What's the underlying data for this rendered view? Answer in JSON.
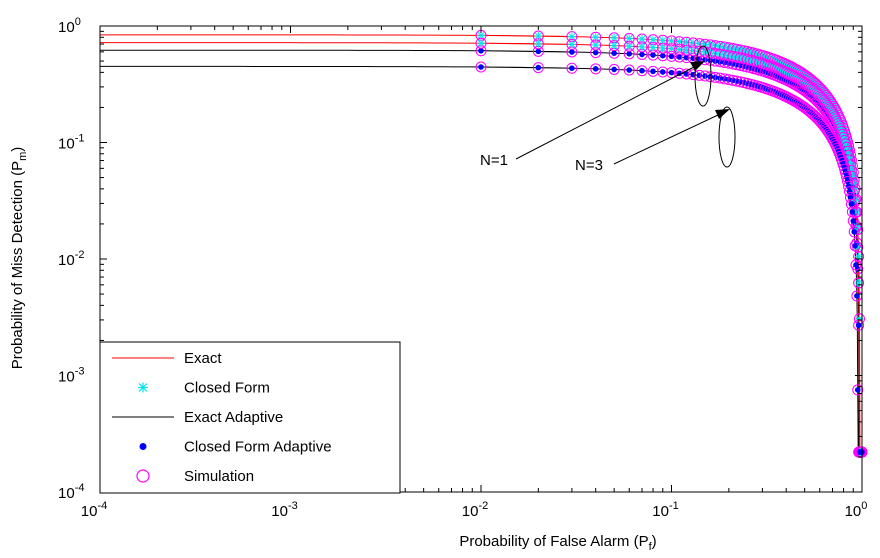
{
  "chart_data": {
    "type": "line",
    "xlabel": {
      "main": "Probability of False Alarm (P",
      "sub": "f",
      "close": ")"
    },
    "ylabel": {
      "main": "Probability of Miss Detection (P",
      "sub": "m",
      "close": ")"
    },
    "xscale": "log",
    "yscale": "log",
    "xlim": [
      0.0001,
      1
    ],
    "ylim": [
      0.0001,
      1
    ],
    "grid": false,
    "legend_position": "bottom-left",
    "x_ticks": [
      {
        "base": "10",
        "exp": "-4"
      },
      {
        "base": "10",
        "exp": "-3"
      },
      {
        "base": "10",
        "exp": "-2"
      },
      {
        "base": "10",
        "exp": "-1"
      },
      {
        "base": "10",
        "exp": "0"
      }
    ],
    "y_ticks": [
      {
        "base": "10",
        "exp": "-4"
      },
      {
        "base": "10",
        "exp": "-3"
      },
      {
        "base": "10",
        "exp": "-2"
      },
      {
        "base": "10",
        "exp": "-1"
      },
      {
        "base": "10",
        "exp": "0"
      }
    ],
    "legend": [
      {
        "label": "Exact",
        "color": "#ff0000",
        "marker": "line"
      },
      {
        "label": "Closed Form",
        "color": "#00e5ee",
        "marker": "asterisk"
      },
      {
        "label": "Exact Adaptive",
        "color": "#000000",
        "marker": "line"
      },
      {
        "label": "Closed Form Adaptive",
        "color": "#0000ff",
        "marker": "dot"
      },
      {
        "label": "Simulation",
        "color": "#ff00ff",
        "marker": "circle"
      }
    ],
    "annotations": [
      {
        "text": "N=1",
        "x": 0.14,
        "y": 0.45
      },
      {
        "text": "N=3",
        "x": 0.2,
        "y": 0.2
      }
    ],
    "curves": [
      {
        "N": 1,
        "variant": "non-adaptive",
        "params": [
          0.84,
          0.008
        ]
      },
      {
        "N": 1,
        "variant": "adaptive",
        "params": [
          0.62,
          0.01
        ]
      },
      {
        "N": 3,
        "variant": "non-adaptive",
        "params": [
          0.72,
          0.005
        ]
      },
      {
        "N": 3,
        "variant": "adaptive",
        "params": [
          0.45,
          0.006
        ]
      }
    ]
  }
}
